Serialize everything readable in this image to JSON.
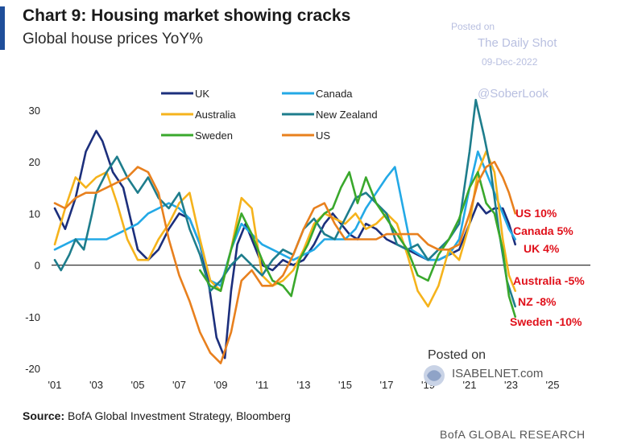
{
  "header": {
    "title": "Chart 9: Housing market showing cracks",
    "subtitle": "Global house prices YoY%"
  },
  "watermark": {
    "posted_on": "Posted on",
    "site": "The Daily Shot",
    "date": "09-Dec-2022",
    "handle": "@SoberLook",
    "posted_on_2": "Posted on",
    "isabelnet": "ISABELNET.com"
  },
  "footer": {
    "source_label": "Source:",
    "source_text": "BofA Global Investment Strategy, Bloomberg",
    "brand": "BofA GLOBAL RESEARCH"
  },
  "colors": {
    "UK": "#1c2f7c",
    "Canada": "#23a9e6",
    "Australia": "#f5b31c",
    "New Zealand": "#1e7d8c",
    "Sweden": "#3aa82c",
    "US": "#e8801e",
    "end_labels": "#e0101a"
  },
  "chart_data": {
    "type": "line",
    "title": "Chart 9: Housing market showing cracks",
    "subtitle": "Global house prices YoY%",
    "xlabel": "",
    "ylabel": "",
    "xlim": [
      2001,
      2025
    ],
    "ylim": [
      -20,
      30
    ],
    "x_ticks": [
      "'01",
      "'03",
      "'05",
      "'07",
      "'09",
      "'11",
      "'13",
      "'15",
      "'17",
      "'19",
      "'21",
      "'23",
      "'25"
    ],
    "y_ticks": [
      "30",
      "20",
      "10",
      "0",
      "-10",
      "-20"
    ],
    "grid": false,
    "zero_line": true,
    "legend_position": "top-left",
    "legend": [
      "UK",
      "Canada",
      "Australia",
      "New Zealand",
      "Sweden",
      "US"
    ],
    "series": [
      {
        "name": "UK",
        "points": [
          [
            2001,
            11
          ],
          [
            2001.5,
            7
          ],
          [
            2002,
            13
          ],
          [
            2002.5,
            22
          ],
          [
            2003,
            26
          ],
          [
            2003.3,
            24
          ],
          [
            2003.8,
            18
          ],
          [
            2004.3,
            15
          ],
          [
            2005,
            3
          ],
          [
            2005.5,
            1
          ],
          [
            2006,
            3
          ],
          [
            2006.5,
            7
          ],
          [
            2007,
            10
          ],
          [
            2007.5,
            9
          ],
          [
            2008,
            4
          ],
          [
            2008.4,
            -3
          ],
          [
            2008.8,
            -14
          ],
          [
            2009.2,
            -18
          ],
          [
            2009.5,
            -5
          ],
          [
            2009.8,
            4
          ],
          [
            2010.2,
            8
          ],
          [
            2010.6,
            4
          ],
          [
            2011,
            0
          ],
          [
            2011.5,
            -1
          ],
          [
            2012,
            1
          ],
          [
            2012.5,
            0
          ],
          [
            2013,
            1
          ],
          [
            2013.5,
            4
          ],
          [
            2014,
            8
          ],
          [
            2014.4,
            10
          ],
          [
            2014.8,
            8
          ],
          [
            2015.2,
            6
          ],
          [
            2015.6,
            5
          ],
          [
            2016,
            8
          ],
          [
            2016.5,
            7
          ],
          [
            2017,
            5
          ],
          [
            2017.5,
            4
          ],
          [
            2018,
            3
          ],
          [
            2018.5,
            2
          ],
          [
            2019,
            1
          ],
          [
            2019.5,
            1
          ],
          [
            2020,
            2
          ],
          [
            2020.5,
            3
          ],
          [
            2021,
            8
          ],
          [
            2021.4,
            12
          ],
          [
            2021.8,
            10
          ],
          [
            2022.2,
            11
          ],
          [
            2022.6,
            11
          ],
          [
            2022.9,
            8
          ],
          [
            2023.2,
            4
          ]
        ]
      },
      {
        "name": "Canada",
        "points": [
          [
            2001,
            3
          ],
          [
            2001.5,
            4
          ],
          [
            2002,
            5
          ],
          [
            2002.5,
            5
          ],
          [
            2003,
            5
          ],
          [
            2003.5,
            5
          ],
          [
            2004,
            6
          ],
          [
            2004.5,
            7
          ],
          [
            2005,
            8
          ],
          [
            2005.5,
            10
          ],
          [
            2006,
            11
          ],
          [
            2006.5,
            12
          ],
          [
            2007,
            11
          ],
          [
            2007.5,
            9
          ],
          [
            2008,
            4
          ],
          [
            2008.5,
            -3
          ],
          [
            2009,
            -4
          ],
          [
            2009.5,
            3
          ],
          [
            2010,
            8
          ],
          [
            2010.5,
            6
          ],
          [
            2011,
            4
          ],
          [
            2011.5,
            3
          ],
          [
            2012,
            2
          ],
          [
            2012.5,
            1
          ],
          [
            2013,
            2
          ],
          [
            2013.5,
            3
          ],
          [
            2014,
            5
          ],
          [
            2014.5,
            5
          ],
          [
            2015,
            5
          ],
          [
            2015.5,
            7
          ],
          [
            2016,
            11
          ],
          [
            2016.5,
            14
          ],
          [
            2017,
            17
          ],
          [
            2017.4,
            19
          ],
          [
            2017.8,
            11
          ],
          [
            2018.2,
            3
          ],
          [
            2018.6,
            2
          ],
          [
            2019,
            1
          ],
          [
            2019.5,
            1
          ],
          [
            2020,
            2
          ],
          [
            2020.5,
            5
          ],
          [
            2021,
            15
          ],
          [
            2021.4,
            22
          ],
          [
            2021.8,
            18
          ],
          [
            2022.2,
            14
          ],
          [
            2022.6,
            10
          ],
          [
            2022.9,
            7
          ],
          [
            2023.2,
            5
          ]
        ]
      },
      {
        "name": "Australia",
        "points": [
          [
            2001,
            4
          ],
          [
            2001.5,
            11
          ],
          [
            2002,
            17
          ],
          [
            2002.5,
            15
          ],
          [
            2003,
            17
          ],
          [
            2003.5,
            18
          ],
          [
            2004,
            12
          ],
          [
            2004.5,
            5
          ],
          [
            2005,
            1
          ],
          [
            2005.5,
            1
          ],
          [
            2006,
            5
          ],
          [
            2006.5,
            8
          ],
          [
            2007,
            12
          ],
          [
            2007.5,
            14
          ],
          [
            2008,
            5
          ],
          [
            2008.5,
            -3
          ],
          [
            2009,
            -5
          ],
          [
            2009.5,
            3
          ],
          [
            2010,
            13
          ],
          [
            2010.5,
            11
          ],
          [
            2011,
            -2
          ],
          [
            2011.5,
            -4
          ],
          [
            2012,
            -3
          ],
          [
            2012.5,
            -1
          ],
          [
            2013,
            3
          ],
          [
            2013.5,
            8
          ],
          [
            2014,
            10
          ],
          [
            2014.5,
            9
          ],
          [
            2015,
            8
          ],
          [
            2015.5,
            10
          ],
          [
            2016,
            7
          ],
          [
            2016.5,
            8
          ],
          [
            2017,
            10
          ],
          [
            2017.5,
            8
          ],
          [
            2018,
            2
          ],
          [
            2018.5,
            -5
          ],
          [
            2019,
            -8
          ],
          [
            2019.5,
            -4
          ],
          [
            2020,
            3
          ],
          [
            2020.5,
            1
          ],
          [
            2021,
            8
          ],
          [
            2021.4,
            18
          ],
          [
            2021.8,
            22
          ],
          [
            2022.2,
            18
          ],
          [
            2022.6,
            5
          ],
          [
            2022.9,
            -2
          ],
          [
            2023.2,
            -5
          ]
        ]
      },
      {
        "name": "New Zealand",
        "points": [
          [
            2001,
            1
          ],
          [
            2001.3,
            -1
          ],
          [
            2001.7,
            2
          ],
          [
            2002,
            5
          ],
          [
            2002.4,
            3
          ],
          [
            2002.8,
            10
          ],
          [
            2003,
            14
          ],
          [
            2003.5,
            18
          ],
          [
            2004,
            21
          ],
          [
            2004.5,
            17
          ],
          [
            2005,
            14
          ],
          [
            2005.5,
            17
          ],
          [
            2006,
            13
          ],
          [
            2006.5,
            11
          ],
          [
            2007,
            14
          ],
          [
            2007.5,
            7
          ],
          [
            2008,
            2
          ],
          [
            2008.5,
            -5
          ],
          [
            2009,
            -3
          ],
          [
            2009.5,
            0
          ],
          [
            2010,
            2
          ],
          [
            2010.5,
            0
          ],
          [
            2011,
            -2
          ],
          [
            2011.5,
            1
          ],
          [
            2012,
            3
          ],
          [
            2012.5,
            2
          ],
          [
            2013,
            7
          ],
          [
            2013.5,
            9
          ],
          [
            2014,
            6
          ],
          [
            2014.5,
            5
          ],
          [
            2015,
            9
          ],
          [
            2015.5,
            13
          ],
          [
            2016,
            14
          ],
          [
            2016.5,
            12
          ],
          [
            2017,
            10
          ],
          [
            2017.5,
            4
          ],
          [
            2018,
            3
          ],
          [
            2018.5,
            4
          ],
          [
            2019,
            1
          ],
          [
            2019.5,
            3
          ],
          [
            2020,
            5
          ],
          [
            2020.5,
            8
          ],
          [
            2021,
            22
          ],
          [
            2021.3,
            32
          ],
          [
            2021.7,
            25
          ],
          [
            2022,
            19
          ],
          [
            2022.4,
            7
          ],
          [
            2022.8,
            -3
          ],
          [
            2023.2,
            -8
          ]
        ]
      },
      {
        "name": "Sweden",
        "points": [
          [
            2008,
            -1
          ],
          [
            2008.5,
            -4
          ],
          [
            2009,
            -5
          ],
          [
            2009.5,
            3
          ],
          [
            2010,
            10
          ],
          [
            2010.5,
            6
          ],
          [
            2011,
            1
          ],
          [
            2011.5,
            -3
          ],
          [
            2012,
            -4
          ],
          [
            2012.4,
            -6
          ],
          [
            2012.8,
            1
          ],
          [
            2013.2,
            4
          ],
          [
            2013.6,
            8
          ],
          [
            2014,
            10
          ],
          [
            2014.4,
            11
          ],
          [
            2014.8,
            15
          ],
          [
            2015.2,
            18
          ],
          [
            2015.6,
            12
          ],
          [
            2016,
            17
          ],
          [
            2016.5,
            12
          ],
          [
            2017,
            9
          ],
          [
            2017.5,
            6
          ],
          [
            2018,
            3
          ],
          [
            2018.5,
            -2
          ],
          [
            2019,
            -3
          ],
          [
            2019.5,
            2
          ],
          [
            2020,
            5
          ],
          [
            2020.5,
            9
          ],
          [
            2021,
            15
          ],
          [
            2021.4,
            18
          ],
          [
            2021.8,
            12
          ],
          [
            2022.2,
            10
          ],
          [
            2022.6,
            3
          ],
          [
            2022.9,
            -6
          ],
          [
            2023.2,
            -10
          ]
        ]
      },
      {
        "name": "US",
        "points": [
          [
            2001,
            12
          ],
          [
            2001.5,
            11
          ],
          [
            2002,
            13
          ],
          [
            2002.5,
            14
          ],
          [
            2003,
            14
          ],
          [
            2003.5,
            15
          ],
          [
            2004,
            16
          ],
          [
            2004.5,
            17
          ],
          [
            2005,
            19
          ],
          [
            2005.5,
            18
          ],
          [
            2006,
            14
          ],
          [
            2006.5,
            5
          ],
          [
            2007,
            -2
          ],
          [
            2007.5,
            -7
          ],
          [
            2008,
            -13
          ],
          [
            2008.5,
            -17
          ],
          [
            2009,
            -19
          ],
          [
            2009.5,
            -13
          ],
          [
            2010,
            -3
          ],
          [
            2010.5,
            -1
          ],
          [
            2011,
            -4
          ],
          [
            2011.5,
            -4
          ],
          [
            2012,
            -2
          ],
          [
            2012.5,
            2
          ],
          [
            2013,
            7
          ],
          [
            2013.5,
            11
          ],
          [
            2014,
            12
          ],
          [
            2014.5,
            8
          ],
          [
            2015,
            5
          ],
          [
            2015.5,
            5
          ],
          [
            2016,
            5
          ],
          [
            2016.5,
            5
          ],
          [
            2017,
            6
          ],
          [
            2017.5,
            6
          ],
          [
            2018,
            6
          ],
          [
            2018.5,
            6
          ],
          [
            2019,
            4
          ],
          [
            2019.5,
            3
          ],
          [
            2020,
            3
          ],
          [
            2020.5,
            4
          ],
          [
            2021,
            10
          ],
          [
            2021.4,
            16
          ],
          [
            2021.8,
            19
          ],
          [
            2022.2,
            20
          ],
          [
            2022.6,
            17
          ],
          [
            2022.9,
            14
          ],
          [
            2023.2,
            10
          ]
        ]
      }
    ],
    "end_labels": [
      {
        "series": "US",
        "text": "US 10%",
        "value": 10
      },
      {
        "series": "Canada",
        "text": "Canada 5%",
        "value": 5
      },
      {
        "series": "UK",
        "text": "UK 4%",
        "value": 4
      },
      {
        "series": "Australia",
        "text": "Australia -5%",
        "value": -5
      },
      {
        "series": "New Zealand",
        "text": "NZ -8%",
        "value": -8
      },
      {
        "series": "Sweden",
        "text": "Sweden -10%",
        "value": -10
      }
    ]
  }
}
